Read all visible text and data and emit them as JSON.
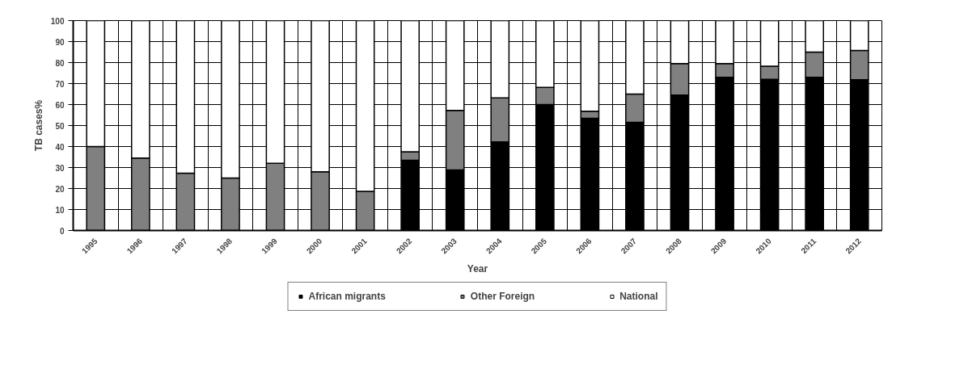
{
  "chart_data": {
    "type": "bar",
    "stacked": true,
    "xlabel": "Year",
    "ylabel": "TB cases%",
    "categories": [
      "1995",
      "1996",
      "1997",
      "1998",
      "1999",
      "2000",
      "2001",
      "2002",
      "2003",
      "2004",
      "2005",
      "2006",
      "2007",
      "2008",
      "2009",
      "2010",
      "2011",
      "2012"
    ],
    "series": [
      {
        "name": "African migrants",
        "color": "#000000",
        "values": [
          0,
          0,
          0,
          0,
          0,
          0,
          0,
          33.5,
          28.8,
          42.2,
          60,
          53.5,
          51.5,
          64.5,
          73,
          72,
          73,
          71.8
        ]
      },
      {
        "name": "Other Foreign",
        "color": "#808080",
        "values": [
          40,
          34.5,
          27.3,
          25,
          32,
          28,
          18.7,
          4,
          28.4,
          21,
          8.2,
          3.3,
          13.5,
          15,
          6.5,
          6.3,
          12,
          14
        ]
      },
      {
        "name": "National",
        "color": "#ffffff",
        "values": [
          60,
          65.5,
          72.7,
          75,
          68,
          72,
          81.3,
          62.5,
          42.8,
          36.8,
          31.8,
          43.2,
          35,
          20.5,
          20.5,
          21.7,
          15,
          14.2
        ]
      }
    ],
    "ylim": [
      0,
      100
    ],
    "yticks": [
      0,
      10,
      20,
      30,
      40,
      50,
      60,
      70,
      80,
      90,
      100
    ],
    "grid": true,
    "legend": "bottom"
  }
}
